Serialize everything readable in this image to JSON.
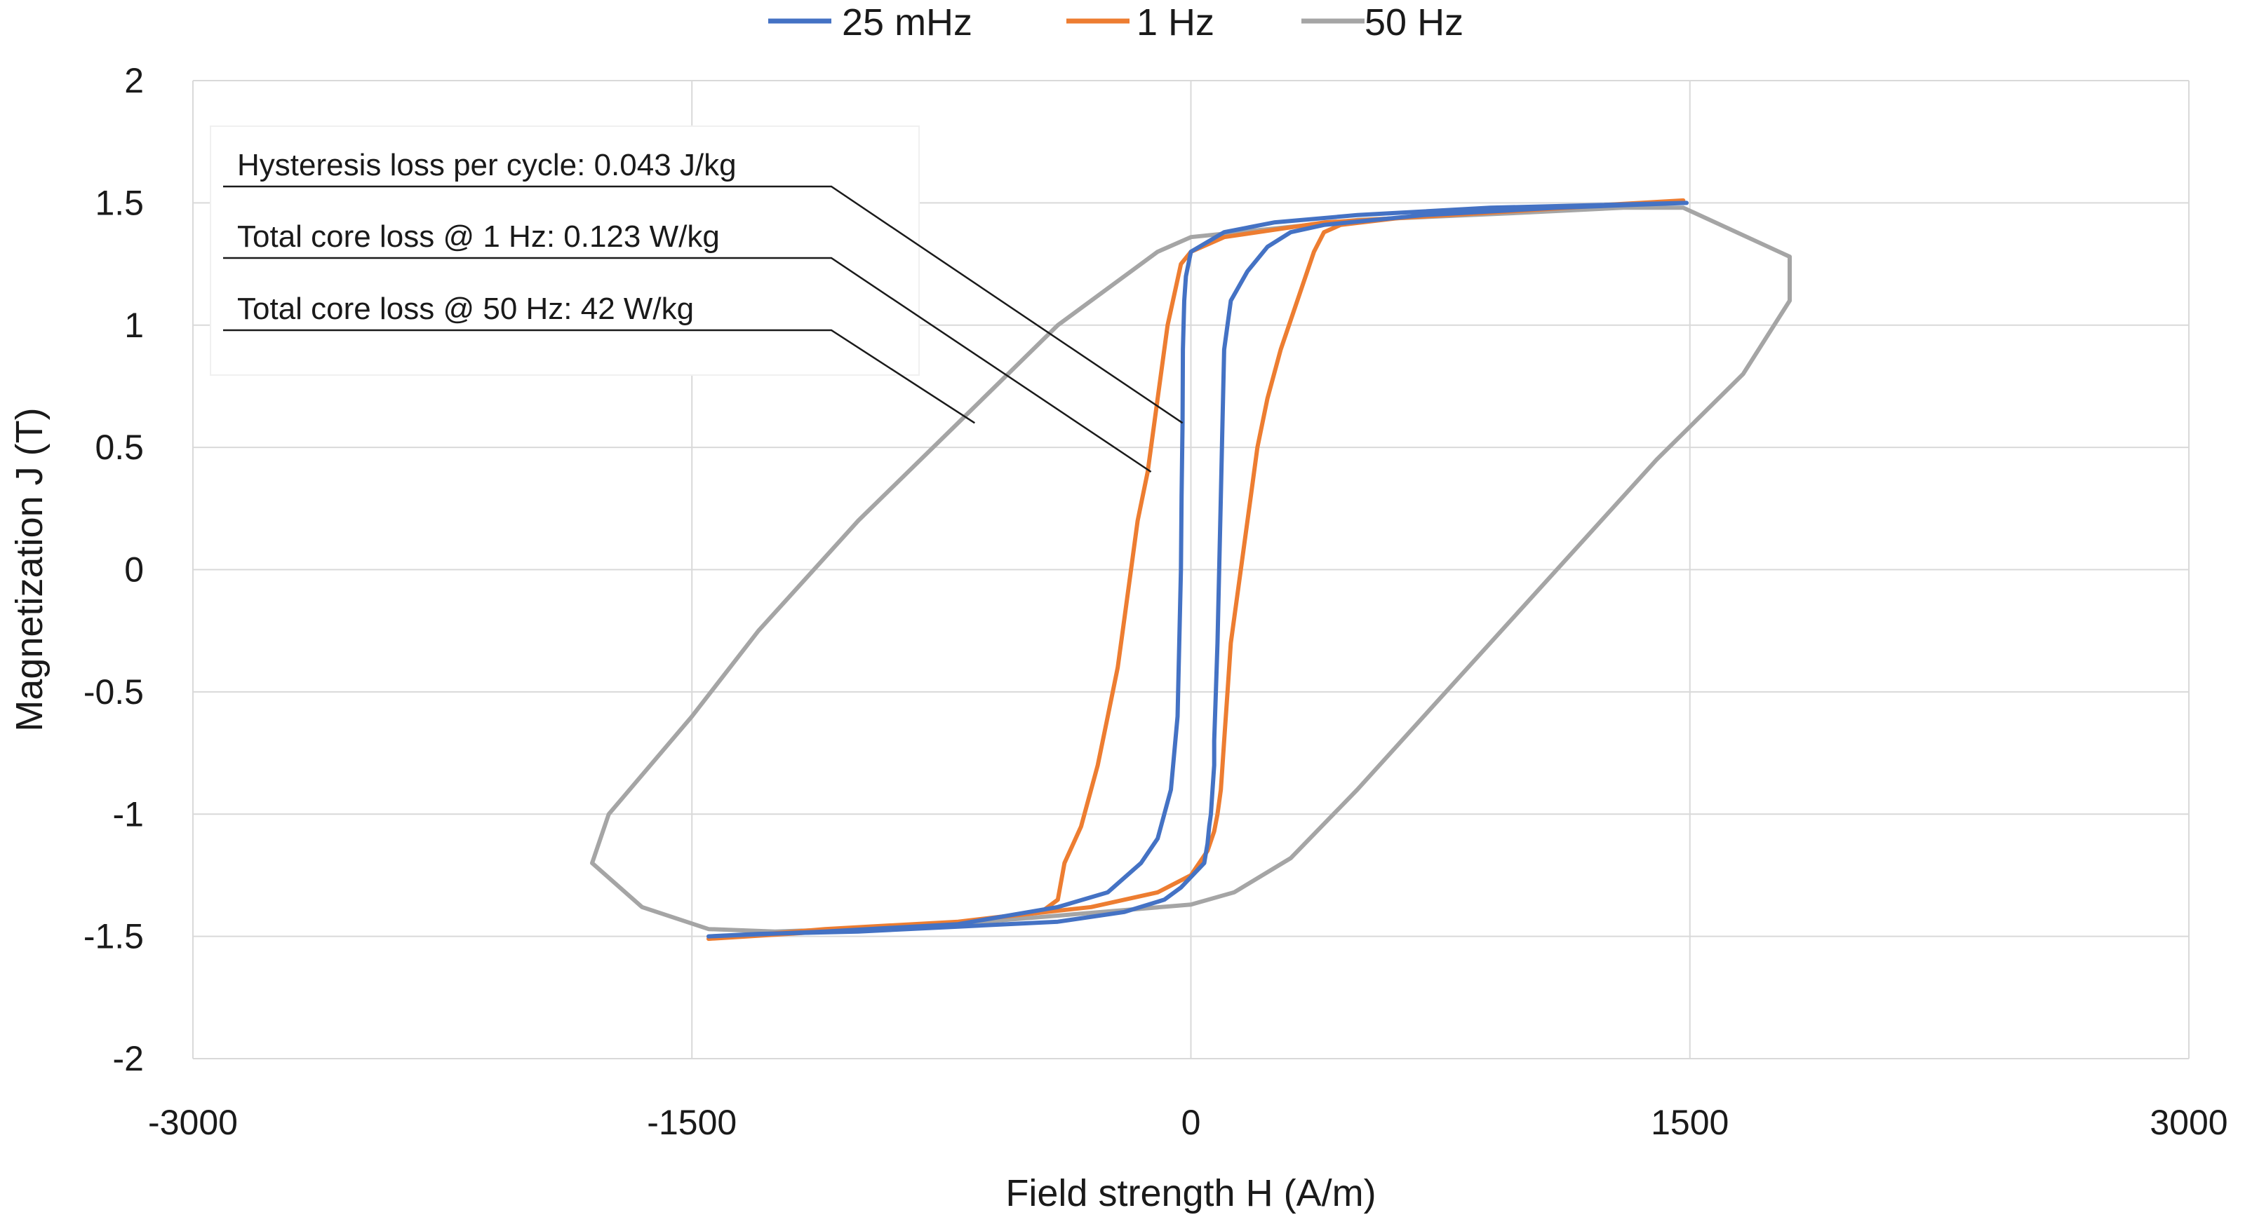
{
  "chart_data": {
    "type": "line",
    "title": "",
    "xlabel": "Field strength H (A/m)",
    "ylabel": "Magnetization J (T)",
    "xlim": [
      -3000,
      3000
    ],
    "ylim": [
      -2,
      2
    ],
    "xticks": [
      -3000,
      -1500,
      0,
      1500,
      3000
    ],
    "yticks": [
      -2,
      -1.5,
      -1,
      -0.5,
      0,
      0.5,
      1,
      1.5,
      2
    ],
    "xtick_labels": [
      "-3000",
      "-1500",
      "0",
      "1500",
      "3000"
    ],
    "ytick_labels": [
      "-2",
      "-1.5",
      "-1",
      "-0.5",
      "0",
      "0.5",
      "1",
      "1.5",
      "2"
    ],
    "grid": true,
    "legend_position": "top",
    "annotations": [
      {
        "text": "Hysteresis loss per cycle: 0.043 J/kg",
        "target": [
          -25,
          0.6
        ]
      },
      {
        "text": "Total core loss @ 1 Hz: 0.123 W/kg",
        "target": [
          -120,
          0.4
        ]
      },
      {
        "text": "Total core loss @ 50 Hz: 42 W/kg",
        "target": [
          -650,
          0.6
        ]
      }
    ],
    "series": [
      {
        "name": "25 mHz",
        "color": "#4472C4",
        "x": [
          1490,
          1100,
          700,
          400,
          300,
          230,
          170,
          120,
          100,
          95,
          90,
          85,
          80,
          75,
          70,
          70,
          65,
          60,
          55,
          50,
          40,
          -30,
          -80,
          -200,
          -400,
          -700,
          -1000,
          -1300,
          -1450,
          -1100,
          -700,
          -400,
          -250,
          -150,
          -100,
          -60,
          -40,
          -35,
          -30,
          -28,
          -25,
          -24,
          -20,
          -15,
          0,
          100,
          250,
          500,
          900,
          1490
        ],
        "y": [
          1.5,
          1.48,
          1.45,
          1.41,
          1.38,
          1.32,
          1.22,
          1.1,
          0.9,
          0.6,
          0.3,
          0.0,
          -0.3,
          -0.5,
          -0.7,
          -0.8,
          -0.9,
          -1.0,
          -1.05,
          -1.12,
          -1.2,
          -1.3,
          -1.35,
          -1.4,
          -1.44,
          -1.46,
          -1.48,
          -1.49,
          -1.5,
          -1.48,
          -1.45,
          -1.38,
          -1.32,
          -1.2,
          -1.1,
          -0.9,
          -0.6,
          -0.3,
          0.0,
          0.3,
          0.6,
          0.9,
          1.1,
          1.2,
          1.3,
          1.38,
          1.42,
          1.45,
          1.48,
          1.5
        ]
      },
      {
        "name": "1 Hz",
        "color": "#ED7D31",
        "x": [
          1480,
          1100,
          700,
          450,
          400,
          370,
          320,
          270,
          230,
          200,
          180,
          160,
          140,
          120,
          110,
          100,
          90,
          80,
          70,
          50,
          0,
          -100,
          -300,
          -700,
          -1100,
          -1450,
          -1100,
          -700,
          -450,
          -400,
          -380,
          -330,
          -280,
          -250,
          -220,
          -200,
          -160,
          -130,
          -100,
          -70,
          -30,
          0,
          100,
          400,
          900,
          1480
        ],
        "y": [
          1.51,
          1.48,
          1.45,
          1.41,
          1.38,
          1.3,
          1.1,
          0.9,
          0.7,
          0.5,
          0.3,
          0.1,
          -0.1,
          -0.3,
          -0.5,
          -0.7,
          -0.9,
          -1.0,
          -1.07,
          -1.15,
          -1.25,
          -1.32,
          -1.38,
          -1.44,
          -1.47,
          -1.51,
          -1.48,
          -1.44,
          -1.4,
          -1.35,
          -1.2,
          -1.05,
          -0.8,
          -0.6,
          -0.4,
          -0.2,
          0.2,
          0.4,
          0.7,
          1.0,
          1.25,
          1.3,
          1.36,
          1.42,
          1.46,
          1.51
        ]
      },
      {
        "name": "50 Hz",
        "color": "#A5A5A5",
        "x": [
          1480,
          1800,
          1800,
          1660,
          1400,
          1100,
          800,
          500,
          300,
          130,
          0,
          -800,
          -1250,
          -1450,
          -1650,
          -1800,
          -1750,
          -1500,
          -1300,
          -1000,
          -700,
          -400,
          -100,
          0,
          500,
          1000,
          1300,
          1480
        ],
        "y": [
          1.48,
          1.28,
          1.1,
          0.8,
          0.45,
          0.0,
          -0.45,
          -0.9,
          -1.18,
          -1.32,
          -1.37,
          -1.46,
          -1.48,
          -1.47,
          -1.38,
          -1.2,
          -1.0,
          -0.6,
          -0.25,
          0.2,
          0.6,
          1.0,
          1.3,
          1.36,
          1.43,
          1.46,
          1.48,
          1.48
        ]
      }
    ]
  }
}
